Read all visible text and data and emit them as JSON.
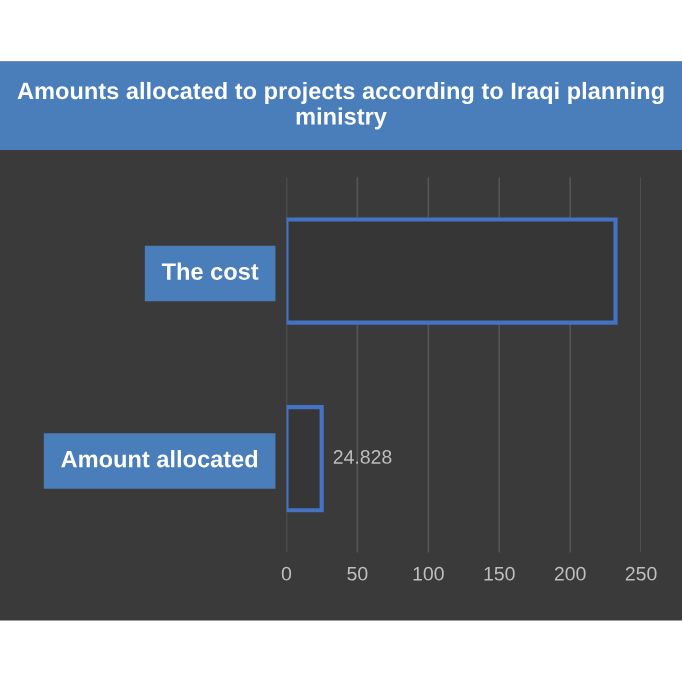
{
  "chart_data": {
    "type": "bar",
    "orientation": "horizontal",
    "title": "Amounts allocated to projects according to Iraqi planning ministry",
    "categories": [
      "The cost",
      "Amount allocated"
    ],
    "values": [
      232,
      24.828
    ],
    "value_labels": [
      null,
      "24.828"
    ],
    "color": "#4472c4",
    "xlim": [
      0,
      250
    ],
    "xticks": [
      0,
      50,
      100,
      150,
      200,
      250
    ],
    "grid": "x"
  }
}
